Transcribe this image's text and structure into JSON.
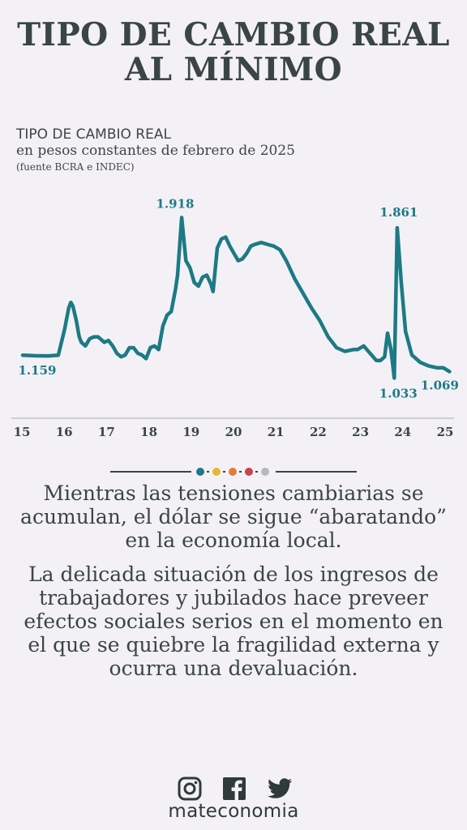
{
  "title_lines": [
    "TIPO DE CAMBIO REAL",
    "AL MÍNIMO"
  ],
  "subtitle": {
    "line1": "TIPO DE CAMBIO REAL",
    "line2": "en pesos constantes de febrero de 2025",
    "line3": "(fuente BCRA e INDEC)"
  },
  "chart_data": {
    "type": "line",
    "title": "TIPO DE CAMBIO REAL",
    "xlabel": "",
    "ylabel": "",
    "xlim": [
      2015.0,
      2025.25
    ],
    "ylim": [
      0.95,
      2.0
    ],
    "grid": false,
    "color": "#1d7a84",
    "x_ticks": [
      "15",
      "16",
      "17",
      "18",
      "19",
      "20",
      "21",
      "22",
      "23",
      "24",
      "25"
    ],
    "annotations": [
      {
        "label": "1.159",
        "x": 2015.0,
        "y": 1.159
      },
      {
        "label": "1.918",
        "x": 2018.7,
        "y": 1.918
      },
      {
        "label": "1.861",
        "x": 2023.95,
        "y": 1.861
      },
      {
        "label": "1.033",
        "x": 2023.88,
        "y": 1.033
      },
      {
        "label": "1.069",
        "x": 2025.2,
        "y": 1.069
      }
    ],
    "series": [
      {
        "x": [
          2015.0,
          2015.3,
          2015.6,
          2015.85,
          2016.0,
          2016.1,
          2016.15,
          2016.2,
          2016.28,
          2016.35,
          2016.4,
          2016.5,
          2016.6,
          2016.7,
          2016.8,
          2016.9,
          2016.95,
          2017.05,
          2017.15,
          2017.25,
          2017.35,
          2017.45,
          2017.55,
          2017.65,
          2017.75,
          2017.85,
          2017.95,
          2018.05,
          2018.15,
          2018.25,
          2018.35,
          2018.45,
          2018.55,
          2018.65,
          2018.7,
          2018.8,
          2018.9,
          2019.0,
          2019.1,
          2019.2,
          2019.3,
          2019.4,
          2019.5,
          2019.55,
          2019.65,
          2019.75,
          2019.85,
          2019.95,
          2020.05,
          2020.15,
          2020.25,
          2020.35,
          2020.45,
          2020.55,
          2020.7,
          2020.85,
          2021.0,
          2021.15,
          2021.3,
          2021.5,
          2021.7,
          2021.9,
          2022.1,
          2022.3,
          2022.5,
          2022.7,
          2022.9,
          2023.0,
          2023.15,
          2023.3,
          2023.45,
          2023.55,
          2023.65,
          2023.72,
          2023.8,
          2023.88,
          2023.95,
          2024.05,
          2024.15,
          2024.3,
          2024.5,
          2024.7,
          2024.9,
          2025.05,
          2025.2
        ],
        "y": [
          1.159,
          1.156,
          1.155,
          1.159,
          1.3,
          1.42,
          1.45,
          1.43,
          1.35,
          1.26,
          1.23,
          1.21,
          1.25,
          1.26,
          1.26,
          1.24,
          1.23,
          1.24,
          1.21,
          1.17,
          1.15,
          1.16,
          1.2,
          1.2,
          1.17,
          1.16,
          1.14,
          1.2,
          1.21,
          1.19,
          1.32,
          1.38,
          1.4,
          1.52,
          1.6,
          1.918,
          1.68,
          1.64,
          1.56,
          1.54,
          1.59,
          1.6,
          1.55,
          1.51,
          1.75,
          1.8,
          1.81,
          1.76,
          1.72,
          1.68,
          1.69,
          1.72,
          1.76,
          1.77,
          1.78,
          1.77,
          1.76,
          1.74,
          1.68,
          1.58,
          1.5,
          1.42,
          1.35,
          1.26,
          1.2,
          1.18,
          1.19,
          1.19,
          1.21,
          1.17,
          1.13,
          1.13,
          1.15,
          1.28,
          1.19,
          1.033,
          1.861,
          1.55,
          1.29,
          1.16,
          1.12,
          1.1,
          1.09,
          1.09,
          1.069
        ]
      }
    ]
  },
  "divider_colors": [
    "#1d7a84",
    "#e8b92e",
    "#e27d3a",
    "#c7434e",
    "#b9b9bd"
  ],
  "paragraph1": "Mientras las tensiones cambiarias se acumulan, el dólar se sigue “abaratando” en la economía local.",
  "paragraph2": "La delicada situación de los ingresos de trabajadores y jubilados hace preveer efectos sociales serios en el momento en el que se quiebre la fragilidad externa y ocurra una devaluación.",
  "social_icons": [
    "instagram-icon",
    "facebook-icon",
    "twitter-icon"
  ],
  "brand": "mateconomia"
}
